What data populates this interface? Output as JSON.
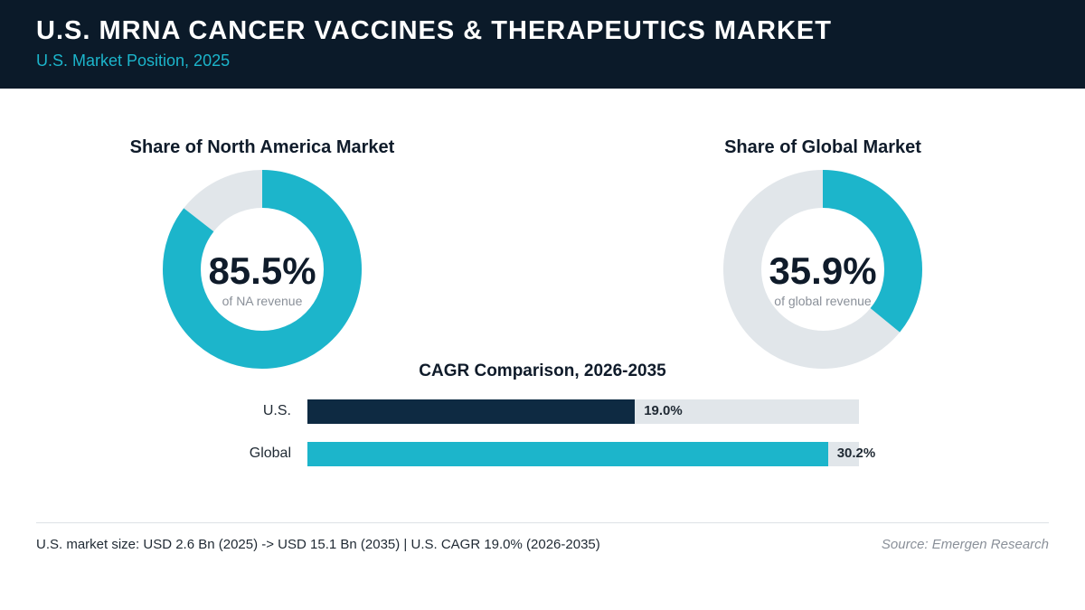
{
  "header": {
    "title": "U.S. MRNA CANCER VACCINES & THERAPEUTICS MARKET",
    "subtitle": "U.S. Market Position, 2025"
  },
  "colors": {
    "header_bg": "#0b1a29",
    "accent": "#1cb5cb",
    "dark_bar": "#0e2a42",
    "track": "#e1e6ea"
  },
  "chart_data": [
    {
      "type": "pie",
      "title": "Share of North America Market",
      "value": 85.5,
      "value_label": "85.5%",
      "caption": "of NA revenue"
    },
    {
      "type": "pie",
      "title": "Share of Global Market",
      "value": 35.9,
      "value_label": "35.9%",
      "caption": "of global revenue"
    },
    {
      "type": "bar",
      "title": "CAGR Comparison, 2026-2035",
      "categories": [
        "U.S.",
        "Global"
      ],
      "values": [
        19.0,
        30.2
      ],
      "value_labels": [
        "19.0%",
        "30.2%"
      ],
      "xlim": [
        0,
        32
      ]
    }
  ],
  "footer": {
    "note": "U.S. market size: USD 2.6 Bn (2025) -> USD 15.1 Bn (2035)  |  U.S. CAGR 19.0% (2026-2035)",
    "source": "Source: Emergen Research"
  }
}
